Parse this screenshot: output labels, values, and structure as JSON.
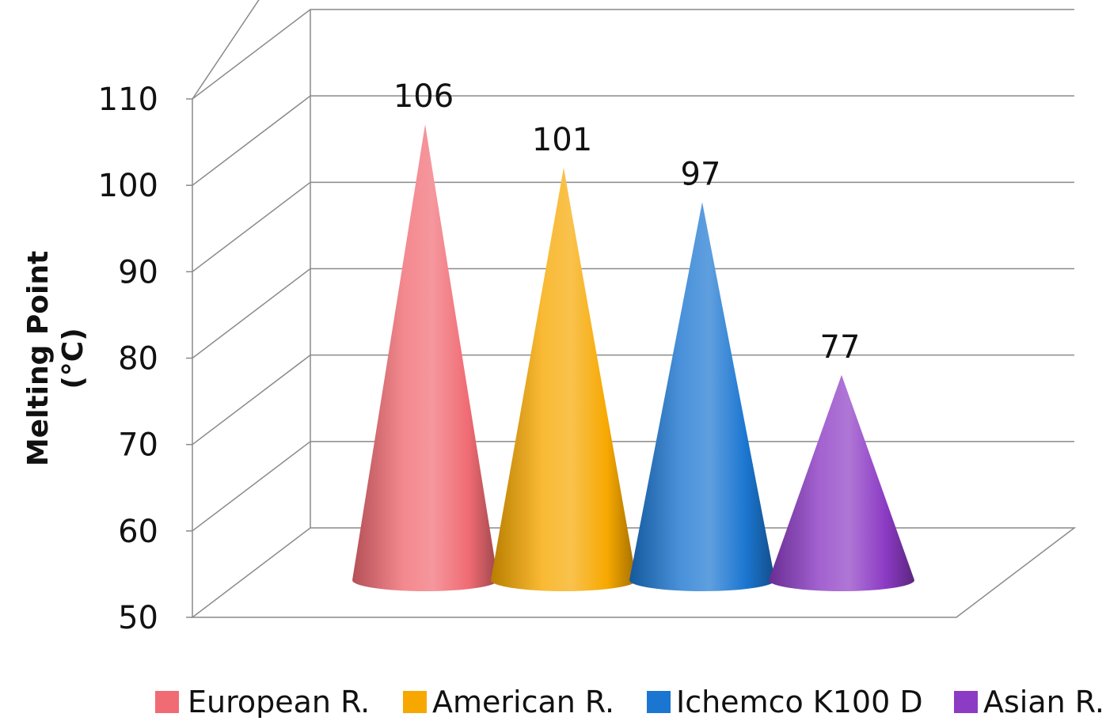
{
  "chart_data": {
    "type": "bar",
    "bar_shape": "cone",
    "three_d": true,
    "title": "",
    "xlabel": "",
    "ylabel": "Melting Point (°C)",
    "ylabel_lines": [
      "Melting Point",
      "(°C)"
    ],
    "ylim": [
      50,
      110
    ],
    "yticks": [
      50,
      60,
      70,
      80,
      90,
      100,
      110
    ],
    "grid": true,
    "legend_position": "bottom",
    "categories": [
      "European R.",
      "American R.",
      "Ichemco K100 D",
      "Asian R."
    ],
    "series": [
      {
        "name": "European R.",
        "value": 106,
        "label": "106",
        "color": "#f06b73"
      },
      {
        "name": "American R.",
        "value": 101,
        "label": "101",
        "color": "#f7a800"
      },
      {
        "name": "Ichemco K100 D",
        "value": 97,
        "label": "97",
        "color": "#1b76d1"
      },
      {
        "name": "Asian R.",
        "value": 77,
        "label": "77",
        "color": "#8c3bc4"
      }
    ]
  }
}
